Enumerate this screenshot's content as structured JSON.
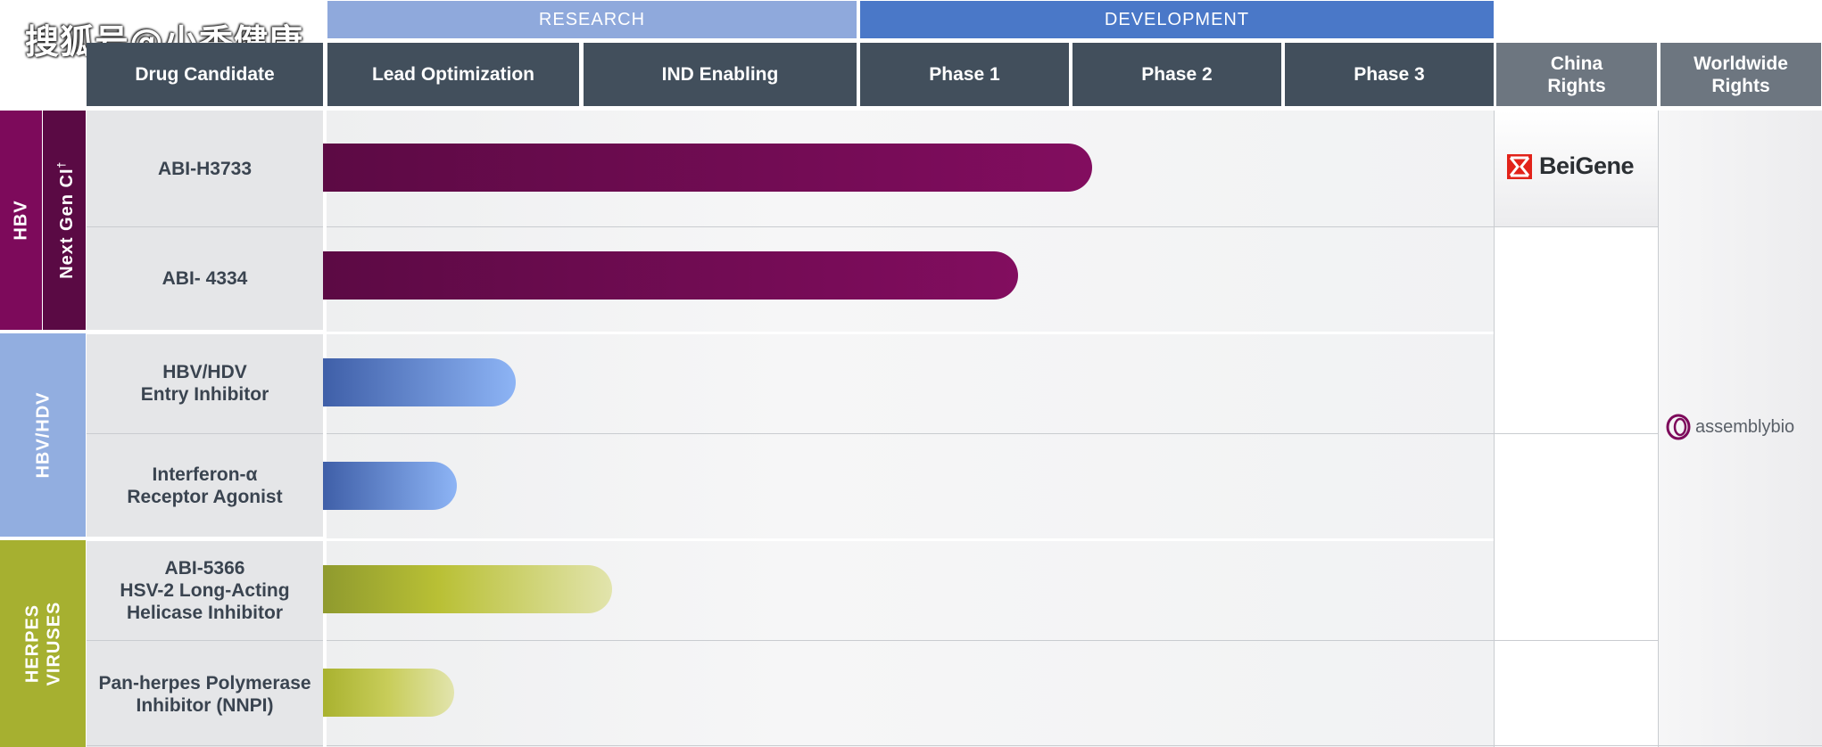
{
  "watermark": "搜狐号@小香健康",
  "header": {
    "group_research": "RESEARCH",
    "group_development": "DEVELOPMENT",
    "col_drug": "Drug Candidate",
    "col_lead": "Lead Optimization",
    "col_ind": "IND Enabling",
    "col_p1": "Phase 1",
    "col_p2": "Phase 2",
    "col_p3": "Phase 3",
    "col_china": "China\nRights",
    "col_world": "Worldwide\nRights"
  },
  "categories": {
    "hbv": "HBV",
    "next_gen": "Next Gen CI",
    "next_gen_mark": "†",
    "hbv_hdv": "HBV/HDV",
    "herpes": "HERPES\nVIRUSES"
  },
  "partners": {
    "china_partner": "BeiGene",
    "worldwide_partner": "assemblybio"
  },
  "colors": {
    "research_header": "#8fa9dc",
    "development_header": "#4a78c8",
    "hbv_band": "#7d0a5b",
    "hbv_subband": "#5a0a44",
    "hbv_hdv_band": "#92aee0",
    "herpes_band": "#a6b030",
    "hbv_bar": "#7b0a5a",
    "hbv_hdv_bar": "#6f9cf0",
    "herpes_bar": "#b3bb33"
  },
  "chart_data": {
    "type": "bar",
    "orientation": "horizontal",
    "title": "",
    "stages": [
      "Lead Optimization",
      "IND Enabling",
      "Phase 1",
      "Phase 2",
      "Phase 3"
    ],
    "xlim": [
      0,
      5
    ],
    "rows": [
      {
        "name": "ABI-H3733",
        "label": "ABI-H3733",
        "group": "HBV",
        "progress": 3.1,
        "china_rights": "BeiGene"
      },
      {
        "name": "ABI- 4334",
        "label": "ABI- 4334",
        "group": "HBV",
        "progress": 2.75
      },
      {
        "name": "HBV/HDV Entry Inhibitor",
        "label": "HBV/HDV\nEntry Inhibitor",
        "group": "HBV/HDV",
        "progress": 0.74
      },
      {
        "name": "Interferon-α Receptor Agonist",
        "label": "Interferon-α\nReceptor Agonist",
        "group": "HBV/HDV",
        "progress": 0.51
      },
      {
        "name": "ABI-5366 HSV-2 Long-Acting Helicase Inhibitor",
        "label": "ABI-5366\nHSV-2 Long-Acting\nHelicase Inhibitor",
        "group": "HERPES VIRUSES",
        "progress": 1.11
      },
      {
        "name": "Pan-herpes Polymerase Inhibitor (NNPI)",
        "label": "Pan-herpes Polymerase\nInhibitor (NNPI)",
        "group": "HERPES VIRUSES",
        "progress": 0.5
      }
    ]
  }
}
